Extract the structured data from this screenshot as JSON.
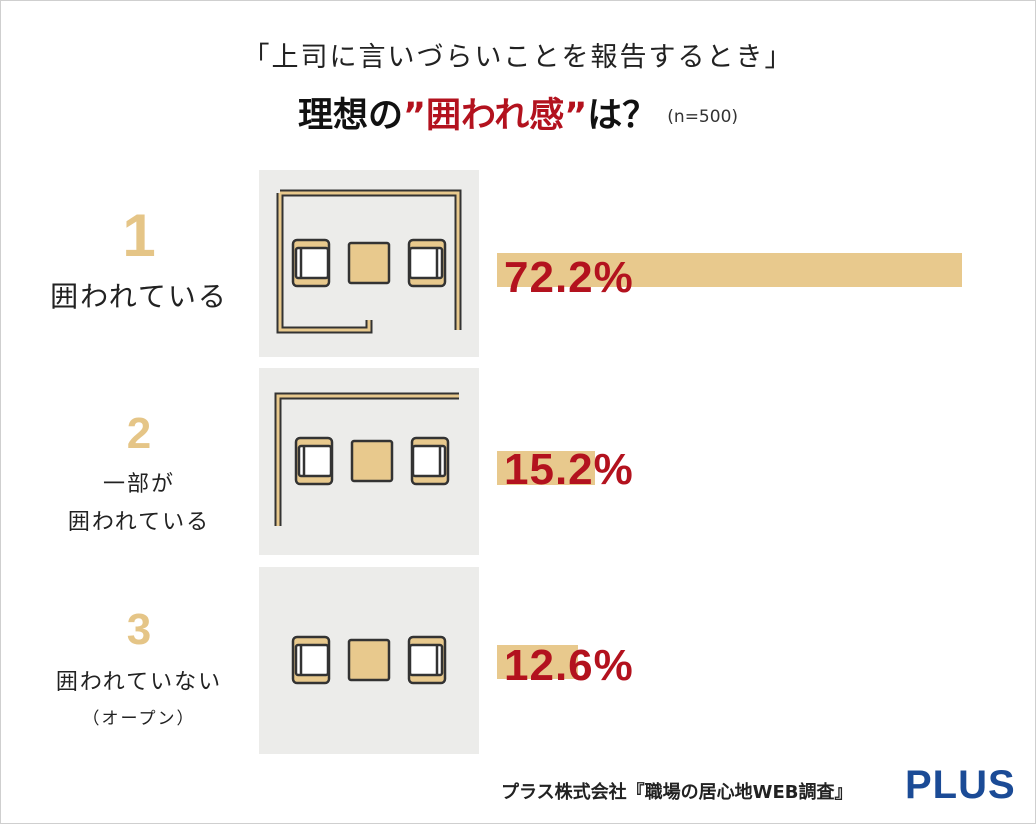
{
  "title": {
    "line1": "「上司に言いづらいことを報告するとき」",
    "line2_prefix": "理想の",
    "line2_highlight": "”囲われ感”",
    "line2_suffix": "は？",
    "sample": "(n=500)"
  },
  "colors": {
    "accent_red": "#b3121e",
    "bar_gold": "#e8c98d",
    "rank_gold": "#e5c587",
    "panel_bg": "#ececea",
    "brand_blue": "#1b4b96"
  },
  "chart_data": {
    "type": "bar",
    "orientation": "horizontal",
    "categories": [
      "囲われている",
      "一部が囲われている",
      "囲われていない（オープン）"
    ],
    "values": [
      72.2,
      15.2,
      12.6
    ],
    "unit": "%",
    "xlim": [
      0,
      100
    ],
    "ranks": [
      1,
      2,
      3
    ]
  },
  "items": [
    {
      "rank": "1",
      "label_lines": [
        "囲われている"
      ],
      "value_text": "72.2%",
      "icon": "fully-enclosed-meeting-space-icon"
    },
    {
      "rank": "2",
      "label_lines": [
        "一部が",
        "囲われている"
      ],
      "value_text": "15.2%",
      "icon": "partially-enclosed-meeting-space-icon"
    },
    {
      "rank": "3",
      "label_lines": [
        "囲われていない",
        "（オープン）"
      ],
      "value_text": "12.6%",
      "icon": "open-meeting-space-icon"
    }
  ],
  "footer": {
    "source": "プラス株式会社『職場の居心地WEB調査』",
    "logo": "PLUS"
  }
}
